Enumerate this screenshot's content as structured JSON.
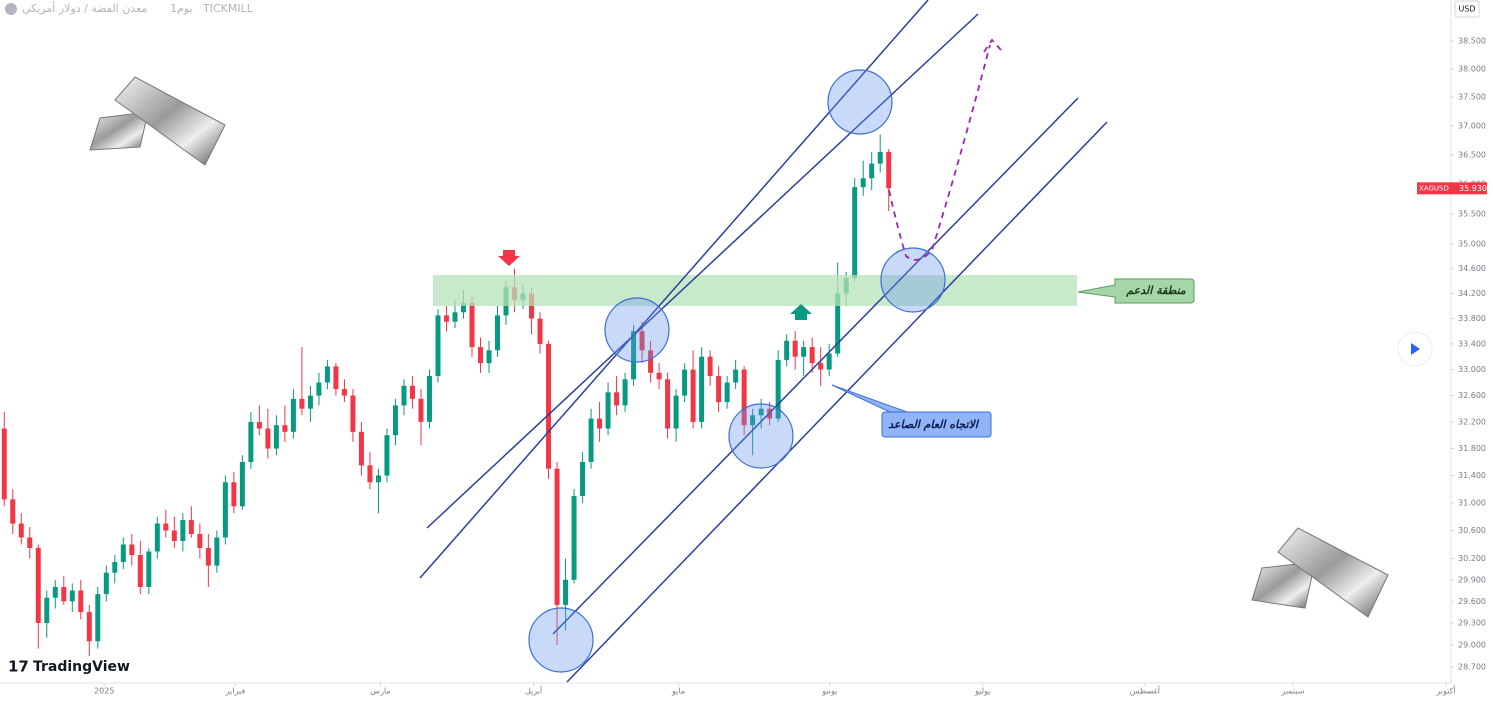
{
  "header": {
    "symbol": "معدن الفضة / دولار أمريكي",
    "interval": "1يوم",
    "broker": "TICKMILL",
    "currency": "USD",
    "brand": "TradingView"
  },
  "annotations": {
    "support": "منطقة الدعم",
    "trend": "الاتجاه العام الصاعد"
  },
  "chart_data": {
    "type": "candlestick",
    "log_scale": true,
    "grid": false,
    "up_color": "#089981",
    "down_color": "#f23645",
    "ylim": [
      28.5,
      39.25
    ],
    "xlim": [
      -0.5,
      170
    ],
    "yticks": [
      {
        "value": 28.7,
        "label": "28.700"
      },
      {
        "value": 29,
        "label": "29.000"
      },
      {
        "value": 29.3,
        "label": "29.300"
      },
      {
        "value": 29.6,
        "label": "29.600"
      },
      {
        "value": 29.9,
        "label": "29.900"
      },
      {
        "value": 30.2,
        "label": "30.200"
      },
      {
        "value": 30.6,
        "label": "30.600"
      },
      {
        "value": 31,
        "label": "31.000"
      },
      {
        "value": 31.4,
        "label": "31.400"
      },
      {
        "value": 31.8,
        "label": "31.800"
      },
      {
        "value": 32.2,
        "label": "32.200"
      },
      {
        "value": 32.6,
        "label": "32.600"
      },
      {
        "value": 33,
        "label": "33.000"
      },
      {
        "value": 33.4,
        "label": "33.400"
      },
      {
        "value": 33.8,
        "label": "33.800"
      },
      {
        "value": 34.2,
        "label": "34.200"
      },
      {
        "value": 34.6,
        "label": "34.600"
      },
      {
        "value": 35,
        "label": "35.000"
      },
      {
        "value": 35.5,
        "label": "35.500"
      },
      {
        "value": 36,
        "label": "36.000"
      },
      {
        "value": 36.5,
        "label": "36.500"
      },
      {
        "value": 37,
        "label": "37.000"
      },
      {
        "value": 37.5,
        "label": "37.500"
      },
      {
        "value": 38,
        "label": "38.000"
      },
      {
        "value": 38.5,
        "label": "38.500"
      }
    ],
    "xticks": [
      {
        "value": 11.76,
        "label": "2025"
      },
      {
        "value": 27.18,
        "label": "فبراير"
      },
      {
        "value": 44.24,
        "label": "مارس"
      },
      {
        "value": 62.24,
        "label": "أبريل"
      },
      {
        "value": 79.29,
        "label": "مايو"
      },
      {
        "value": 97.06,
        "label": "يونيو"
      },
      {
        "value": 115.06,
        "label": "يوليو"
      },
      {
        "value": 134.12,
        "label": "أغسطس"
      },
      {
        "value": 151.53,
        "label": "سبتمبر"
      },
      {
        "value": 169.53,
        "label": "أكتوبر"
      }
    ],
    "price_label": {
      "symbol": "XAGUSD",
      "value": 35.93,
      "label": "35.930"
    },
    "ohlc": [
      [
        32.1,
        32.35,
        30.95,
        31.05
      ],
      [
        31.05,
        31.2,
        30.55,
        30.7
      ],
      [
        30.7,
        30.85,
        30.4,
        30.5
      ],
      [
        30.5,
        30.65,
        30.2,
        30.35
      ],
      [
        30.35,
        30.4,
        28.95,
        29.3
      ],
      [
        29.3,
        29.75,
        29.1,
        29.65
      ],
      [
        29.65,
        29.9,
        29.5,
        29.8
      ],
      [
        29.8,
        29.95,
        29.55,
        29.6
      ],
      [
        29.6,
        29.85,
        29.45,
        29.75
      ],
      [
        29.75,
        29.9,
        29.35,
        29.45
      ],
      [
        29.45,
        29.55,
        28.85,
        29.05
      ],
      [
        29.05,
        29.8,
        28.95,
        29.7
      ],
      [
        29.7,
        30.1,
        29.6,
        30.0
      ],
      [
        30.0,
        30.25,
        29.85,
        30.15
      ],
      [
        30.15,
        30.5,
        30.05,
        30.4
      ],
      [
        30.4,
        30.55,
        30.1,
        30.25
      ],
      [
        30.25,
        30.45,
        29.7,
        29.8
      ],
      [
        29.8,
        30.35,
        29.7,
        30.3
      ],
      [
        30.3,
        30.8,
        30.2,
        30.7
      ],
      [
        30.7,
        30.9,
        30.5,
        30.6
      ],
      [
        30.6,
        30.8,
        30.35,
        30.45
      ],
      [
        30.45,
        30.85,
        30.3,
        30.75
      ],
      [
        30.75,
        30.95,
        30.5,
        30.55
      ],
      [
        30.55,
        30.7,
        30.2,
        30.35
      ],
      [
        30.35,
        30.55,
        29.8,
        30.1
      ],
      [
        30.1,
        30.6,
        30.0,
        30.5
      ],
      [
        30.5,
        31.4,
        30.4,
        31.3
      ],
      [
        31.3,
        31.45,
        30.85,
        30.95
      ],
      [
        30.95,
        31.7,
        30.9,
        31.6
      ],
      [
        31.6,
        32.35,
        31.5,
        32.2
      ],
      [
        32.2,
        32.45,
        32.0,
        32.1
      ],
      [
        32.1,
        32.4,
        31.65,
        31.8
      ],
      [
        31.8,
        32.3,
        31.7,
        32.15
      ],
      [
        32.15,
        32.45,
        31.9,
        32.05
      ],
      [
        32.05,
        32.7,
        31.95,
        32.55
      ],
      [
        32.55,
        33.35,
        32.3,
        32.4
      ],
      [
        32.4,
        32.75,
        32.2,
        32.6
      ],
      [
        32.6,
        32.95,
        32.45,
        32.8
      ],
      [
        32.8,
        33.15,
        32.7,
        33.05
      ],
      [
        33.05,
        33.1,
        32.6,
        32.7
      ],
      [
        32.7,
        32.85,
        32.5,
        32.6
      ],
      [
        32.6,
        32.7,
        31.9,
        32.05
      ],
      [
        32.05,
        32.2,
        31.4,
        31.55
      ],
      [
        31.55,
        31.75,
        31.2,
        31.3
      ],
      [
        31.3,
        31.5,
        30.85,
        31.4
      ],
      [
        31.4,
        32.1,
        31.3,
        32.0
      ],
      [
        32.0,
        32.55,
        31.85,
        32.45
      ],
      [
        32.45,
        32.85,
        32.3,
        32.75
      ],
      [
        32.75,
        32.9,
        32.4,
        32.55
      ],
      [
        32.55,
        32.7,
        31.85,
        32.2
      ],
      [
        32.2,
        33.0,
        32.1,
        32.9
      ],
      [
        32.9,
        33.95,
        32.8,
        33.85
      ],
      [
        33.85,
        34.0,
        33.6,
        33.75
      ],
      [
        33.75,
        34.1,
        33.65,
        33.9
      ],
      [
        33.9,
        34.25,
        33.8,
        34.05
      ],
      [
        34.05,
        34.15,
        33.2,
        33.35
      ],
      [
        33.35,
        33.5,
        32.95,
        33.1
      ],
      [
        33.1,
        33.45,
        32.95,
        33.3
      ],
      [
        33.3,
        34.0,
        33.2,
        33.85
      ],
      [
        33.85,
        34.4,
        33.7,
        34.3
      ],
      [
        34.3,
        34.6,
        33.9,
        34.1
      ],
      [
        34.1,
        34.35,
        33.95,
        34.2
      ],
      [
        34.2,
        34.3,
        33.55,
        33.8
      ],
      [
        33.8,
        33.9,
        33.25,
        33.4
      ],
      [
        33.4,
        33.45,
        31.35,
        31.5
      ],
      [
        31.5,
        31.6,
        29.0,
        29.55
      ],
      [
        29.55,
        30.2,
        29.2,
        29.9
      ],
      [
        29.9,
        31.2,
        29.85,
        31.1
      ],
      [
        31.1,
        31.75,
        31.0,
        31.6
      ],
      [
        31.6,
        32.4,
        31.5,
        32.25
      ],
      [
        32.25,
        32.5,
        31.9,
        32.1
      ],
      [
        32.1,
        32.8,
        32.0,
        32.65
      ],
      [
        32.65,
        32.9,
        32.3,
        32.45
      ],
      [
        32.45,
        32.95,
        32.35,
        32.85
      ],
      [
        32.85,
        33.7,
        32.75,
        33.6
      ],
      [
        33.6,
        33.75,
        33.1,
        33.3
      ],
      [
        33.3,
        33.45,
        32.8,
        32.95
      ],
      [
        32.95,
        33.1,
        32.7,
        32.85
      ],
      [
        32.85,
        32.95,
        31.95,
        32.1
      ],
      [
        32.1,
        32.7,
        31.9,
        32.6
      ],
      [
        32.6,
        33.1,
        32.5,
        33.0
      ],
      [
        33.0,
        33.3,
        32.1,
        32.2
      ],
      [
        32.2,
        33.35,
        32.1,
        33.2
      ],
      [
        33.2,
        33.3,
        32.75,
        32.9
      ],
      [
        32.9,
        33.05,
        32.35,
        32.5
      ],
      [
        32.5,
        32.9,
        32.4,
        32.8
      ],
      [
        32.8,
        33.15,
        32.7,
        33.0
      ],
      [
        33.0,
        33.05,
        32.0,
        32.15
      ],
      [
        32.15,
        32.4,
        31.7,
        32.3
      ],
      [
        32.3,
        32.55,
        32.1,
        32.4
      ],
      [
        32.4,
        32.5,
        32.15,
        32.25
      ],
      [
        32.25,
        33.3,
        32.2,
        33.15
      ],
      [
        33.15,
        33.55,
        33.05,
        33.45
      ],
      [
        33.45,
        33.6,
        33.0,
        33.2
      ],
      [
        33.2,
        33.45,
        32.9,
        33.35
      ],
      [
        33.35,
        33.5,
        32.95,
        33.1
      ],
      [
        33.1,
        33.35,
        32.75,
        33.0
      ],
      [
        33.0,
        33.4,
        32.9,
        33.25
      ],
      [
        33.25,
        34.7,
        33.2,
        34.2
      ],
      [
        34.2,
        34.55,
        34.0,
        34.45
      ],
      [
        34.45,
        36.1,
        34.4,
        35.95
      ],
      [
        35.95,
        36.4,
        35.8,
        36.1
      ],
      [
        36.1,
        36.55,
        35.9,
        36.35
      ],
      [
        36.35,
        36.85,
        36.2,
        36.55
      ],
      [
        36.55,
        36.6,
        35.55,
        35.93
      ]
    ]
  }
}
